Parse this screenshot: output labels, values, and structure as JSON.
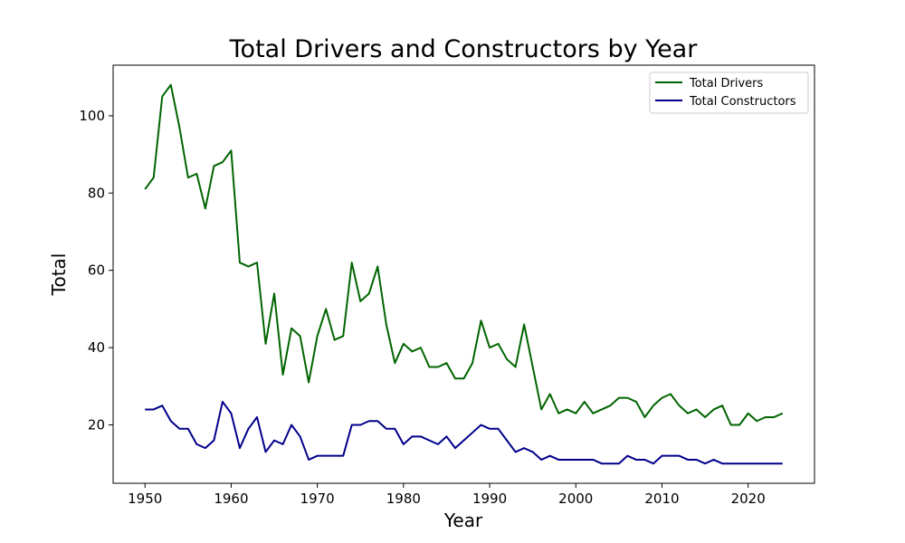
{
  "chart_data": {
    "type": "line",
    "title": "Total Drivers and Constructors by Year",
    "xlabel": "Year",
    "ylabel": "Total",
    "xlim": [
      1946.3,
      2027.7
    ],
    "ylim": [
      4.9,
      113.1
    ],
    "x_ticks": [
      1950,
      1960,
      1970,
      1980,
      1990,
      2000,
      2010,
      2020
    ],
    "y_ticks": [
      20,
      40,
      60,
      80,
      100
    ],
    "grid": false,
    "legend_position": "top-right",
    "x": [
      1950,
      1951,
      1952,
      1953,
      1954,
      1955,
      1956,
      1957,
      1958,
      1959,
      1960,
      1961,
      1962,
      1963,
      1964,
      1965,
      1966,
      1967,
      1968,
      1969,
      1970,
      1971,
      1972,
      1973,
      1974,
      1975,
      1976,
      1977,
      1978,
      1979,
      1980,
      1981,
      1982,
      1983,
      1984,
      1985,
      1986,
      1987,
      1988,
      1989,
      1990,
      1991,
      1992,
      1993,
      1994,
      1995,
      1996,
      1997,
      1998,
      1999,
      2000,
      2001,
      2002,
      2003,
      2004,
      2005,
      2006,
      2007,
      2008,
      2009,
      2010,
      2011,
      2012,
      2013,
      2014,
      2015,
      2016,
      2017,
      2018,
      2019,
      2020,
      2021,
      2022,
      2023,
      2024
    ],
    "series": [
      {
        "name": "Total Drivers",
        "color": "#006400",
        "values": [
          81,
          84,
          105,
          108,
          97,
          84,
          85,
          76,
          87,
          88,
          91,
          62,
          61,
          62,
          41,
          54,
          33,
          45,
          43,
          31,
          43,
          50,
          42,
          43,
          62,
          52,
          54,
          61,
          46,
          36,
          41,
          39,
          40,
          35,
          35,
          36,
          32,
          32,
          36,
          47,
          40,
          41,
          37,
          35,
          46,
          35,
          24,
          28,
          23,
          24,
          23,
          26,
          23,
          24,
          25,
          27,
          27,
          26,
          22,
          25,
          27,
          28,
          25,
          23,
          24,
          22,
          24,
          25,
          20,
          20,
          23,
          21,
          22,
          22,
          23
        ]
      },
      {
        "name": "Total Constructors",
        "color": "#00008B",
        "values": [
          24,
          24,
          25,
          21,
          19,
          19,
          15,
          14,
          16,
          26,
          23,
          14,
          19,
          22,
          13,
          16,
          15,
          20,
          17,
          11,
          12,
          12,
          12,
          12,
          20,
          20,
          21,
          21,
          19,
          19,
          15,
          17,
          17,
          16,
          15,
          17,
          14,
          16,
          18,
          20,
          19,
          19,
          16,
          13,
          14,
          13,
          11,
          12,
          11,
          11,
          11,
          11,
          11,
          10,
          10,
          10,
          12,
          11,
          11,
          10,
          12,
          12,
          12,
          11,
          11,
          10,
          11,
          10,
          10,
          10,
          10,
          10,
          10,
          10,
          10
        ]
      }
    ]
  }
}
